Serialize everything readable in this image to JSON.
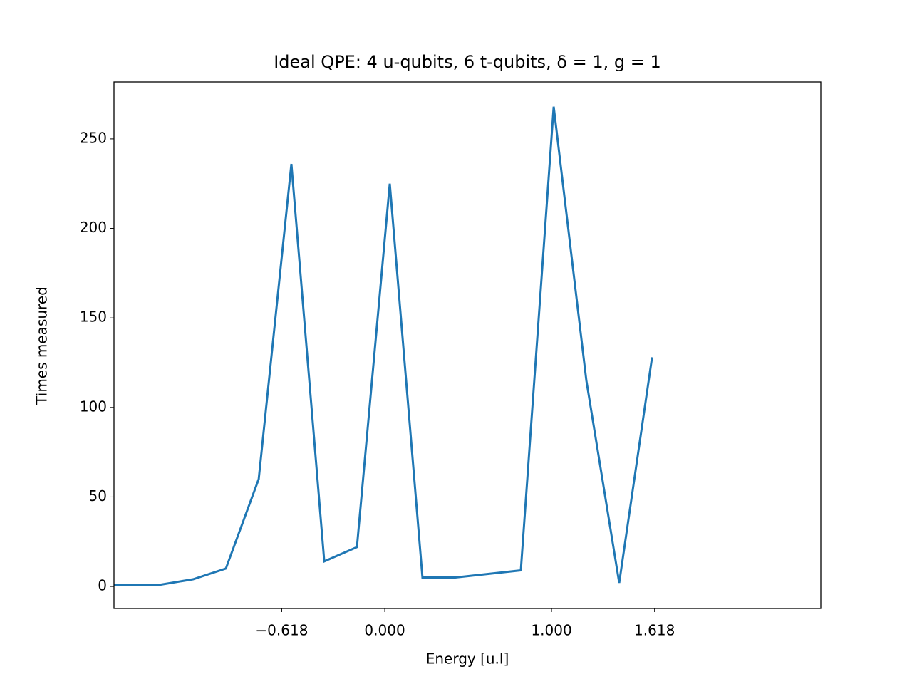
{
  "chart_data": {
    "type": "line",
    "title": "Ideal QPE: 4 u-qubits, 6 t-qubits, δ = 1, g = 1",
    "x_label": "Energy [u.l]",
    "y_label": "Times measured",
    "x": [
      -1.624,
      -1.346,
      -1.15,
      -0.953,
      -0.756,
      -0.56,
      -0.363,
      -0.167,
      0.03,
      0.226,
      0.423,
      0.62,
      0.816,
      1.013,
      1.209,
      1.406,
      1.603
    ],
    "series": [
      {
        "name": "Times measured",
        "color": "#1f77b4",
        "values": [
          1,
          1,
          4,
          10,
          60,
          236,
          14,
          22,
          225,
          5,
          5,
          7,
          9,
          268,
          115,
          2,
          128
        ]
      }
    ],
    "xlim": [
      -1.624,
      2.615
    ],
    "ylim": [
      -12.3,
      281.8
    ],
    "xticks": [
      {
        "value": -0.618,
        "label": "−0.618"
      },
      {
        "value": 0,
        "label": "0.000"
      },
      {
        "value": 1,
        "label": "1.000"
      },
      1.618
    ],
    "yticks": [
      0,
      50,
      100,
      150,
      200,
      250
    ],
    "grid": false
  }
}
